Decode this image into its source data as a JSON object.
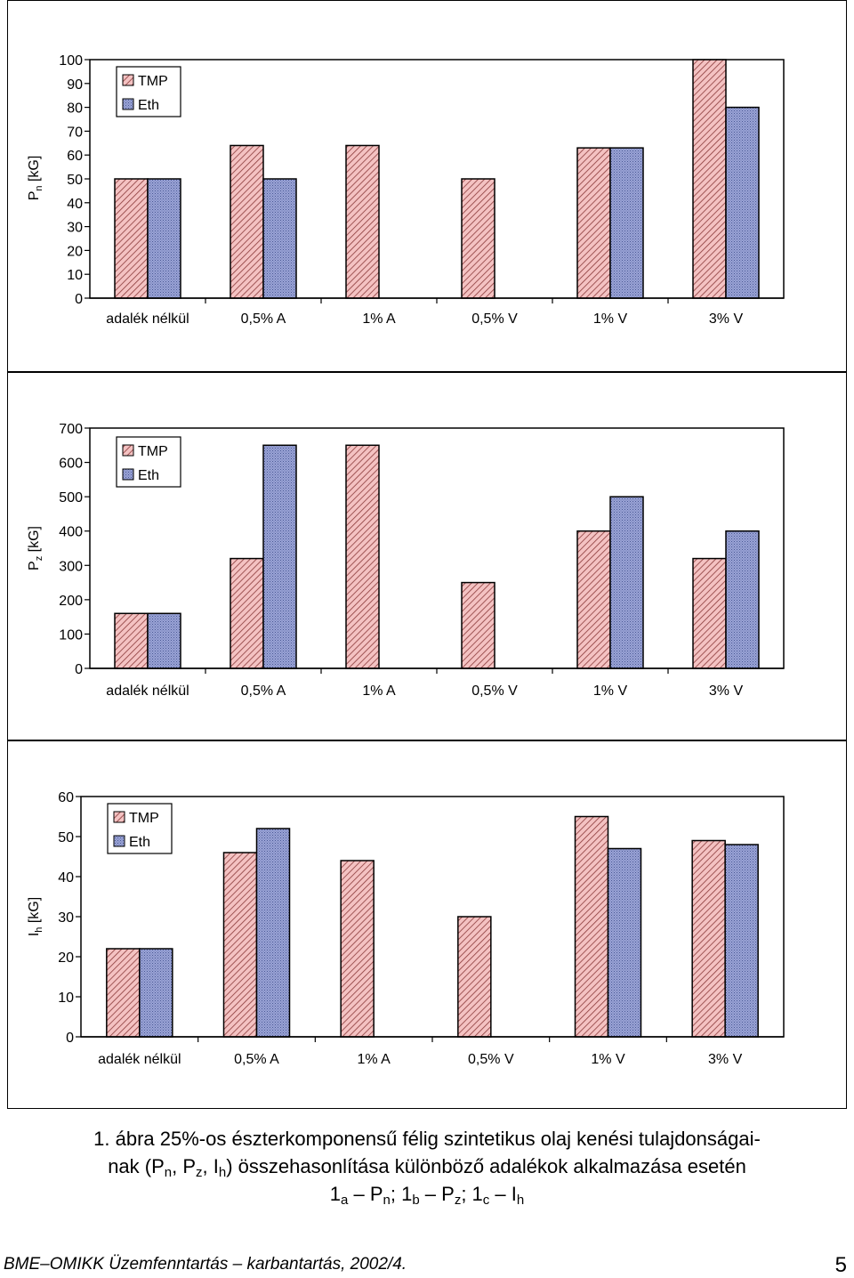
{
  "colors": {
    "tmp_fill": "#f4c2c2",
    "tmp_hatch": "#8b3a3a",
    "eth_fill": "#9aa3d6",
    "eth_hatch": "#2a3a7a"
  },
  "legend": {
    "tmp": "TMP",
    "eth": "Eth"
  },
  "chart_data": [
    {
      "type": "bar",
      "ylabel_main": "P",
      "ylabel_sub": "n",
      "ylabel_unit": "[kG]",
      "ylim": [
        0,
        100
      ],
      "yticks": [
        0,
        10,
        20,
        30,
        40,
        50,
        60,
        70,
        80,
        90,
        100
      ],
      "categories": [
        "adalék nélkül",
        "0,5% A",
        "1% A",
        "0,5% V",
        "1% V",
        "3% V"
      ],
      "series": [
        {
          "name": "TMP",
          "values": [
            50,
            64,
            64,
            50,
            63,
            100
          ]
        },
        {
          "name": "Eth",
          "values": [
            50,
            50,
            null,
            null,
            63,
            80
          ]
        }
      ],
      "legend_position": "top-left"
    },
    {
      "type": "bar",
      "ylabel_main": "P",
      "ylabel_sub": "z",
      "ylabel_unit": "[kG]",
      "ylim": [
        0,
        700
      ],
      "yticks": [
        0,
        100,
        200,
        300,
        400,
        500,
        600,
        700
      ],
      "categories": [
        "adalék nélkül",
        "0,5% A",
        "1% A",
        "0,5% V",
        "1% V",
        "3% V"
      ],
      "series": [
        {
          "name": "TMP",
          "values": [
            160,
            320,
            650,
            250,
            400,
            320
          ]
        },
        {
          "name": "Eth",
          "values": [
            160,
            650,
            null,
            null,
            500,
            400
          ]
        }
      ],
      "legend_position": "top-left"
    },
    {
      "type": "bar",
      "ylabel_main": "I",
      "ylabel_sub": "h",
      "ylabel_unit": "[kG]",
      "ylim": [
        0,
        60
      ],
      "yticks": [
        0,
        10,
        20,
        30,
        40,
        50,
        60
      ],
      "categories": [
        "adalék nélkül",
        "0,5% A",
        "1% A",
        "0,5% V",
        "1% V",
        "3% V"
      ],
      "series": [
        {
          "name": "TMP",
          "values": [
            22,
            46,
            44,
            30,
            55,
            49
          ]
        },
        {
          "name": "Eth",
          "values": [
            22,
            52,
            null,
            null,
            47,
            48
          ]
        }
      ],
      "legend_position": "top-left"
    }
  ],
  "caption": {
    "line1": "1. ábra 25%-os észterkomponensű félig szintetikus olaj kenési tulajdonságai-",
    "line2_a": "nak (P",
    "line2_n": "n",
    "line2_b": ", P",
    "line2_z": "z",
    "line2_c": ", I",
    "line2_h": "h",
    "line2_d": ") összehasonlítása különböző adalékok alkalmazása esetén",
    "line3_a": "1",
    "line3_sa": "a",
    "line3_b": " – P",
    "line3_n": "n",
    "line3_c": "; 1",
    "line3_sb": "b",
    "line3_d": " – P",
    "line3_z": "z",
    "line3_e": "; 1",
    "line3_sc": "c",
    "line3_f": " – I",
    "line3_h": "h"
  },
  "footer": {
    "left": "BME–OMIKK Üzemfenntartás – karbantartás, 2002/4.",
    "page_number": "5"
  }
}
